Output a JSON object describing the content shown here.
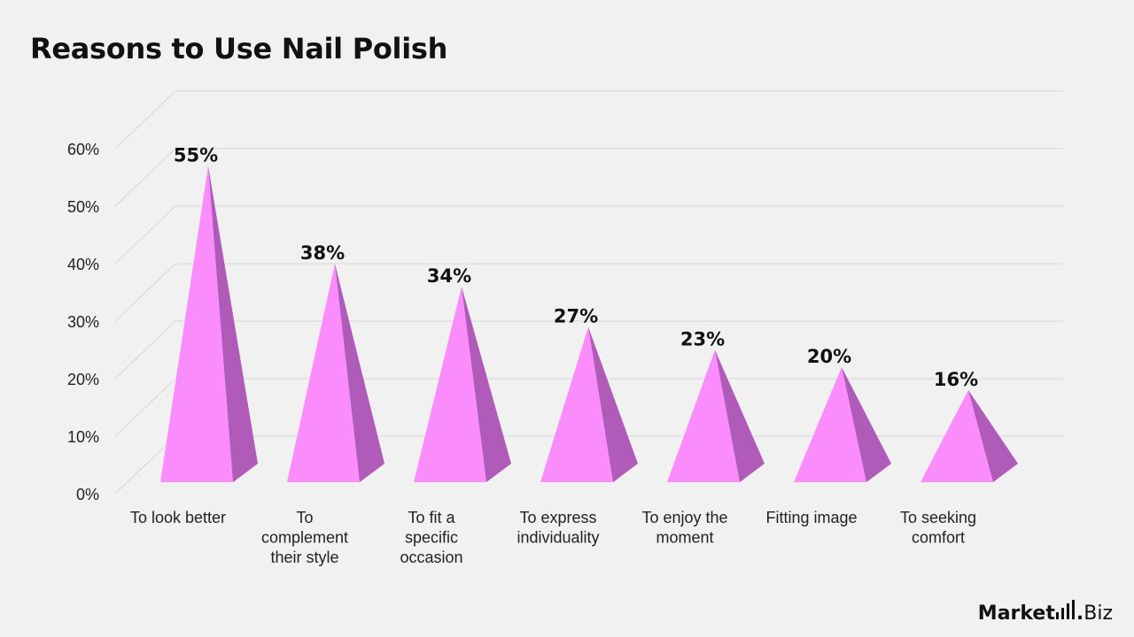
{
  "chart_data": {
    "type": "bar",
    "title": "Reasons to Use Nail Polish",
    "categories": [
      [
        "To look better"
      ],
      [
        "To",
        "complement",
        "their style"
      ],
      [
        "To fit a",
        "specific",
        "occasion"
      ],
      [
        "To express",
        "individuality"
      ],
      [
        "To enjoy the",
        "moment"
      ],
      [
        "Fitting image"
      ],
      [
        "To seeking",
        "comfort"
      ]
    ],
    "values": [
      55,
      38,
      34,
      27,
      23,
      20,
      16
    ],
    "value_labels": [
      "55%",
      "38%",
      "34%",
      "27%",
      "23%",
      "20%",
      "16%"
    ],
    "y_ticks": [
      "0%",
      "10%",
      "20%",
      "30%",
      "40%",
      "50%",
      "60%"
    ],
    "ylim": [
      0,
      60
    ],
    "grid": true,
    "legend": "none",
    "colors": {
      "front": "#fb8cfc",
      "side": "#b05bb9",
      "grid": "#d8d6d6",
      "text": "#111111"
    }
  },
  "branding": {
    "logo_main": "Market",
    "logo_dot": ".",
    "logo_suffix": "Biz",
    "logo_icon": "signal-bars-icon"
  }
}
